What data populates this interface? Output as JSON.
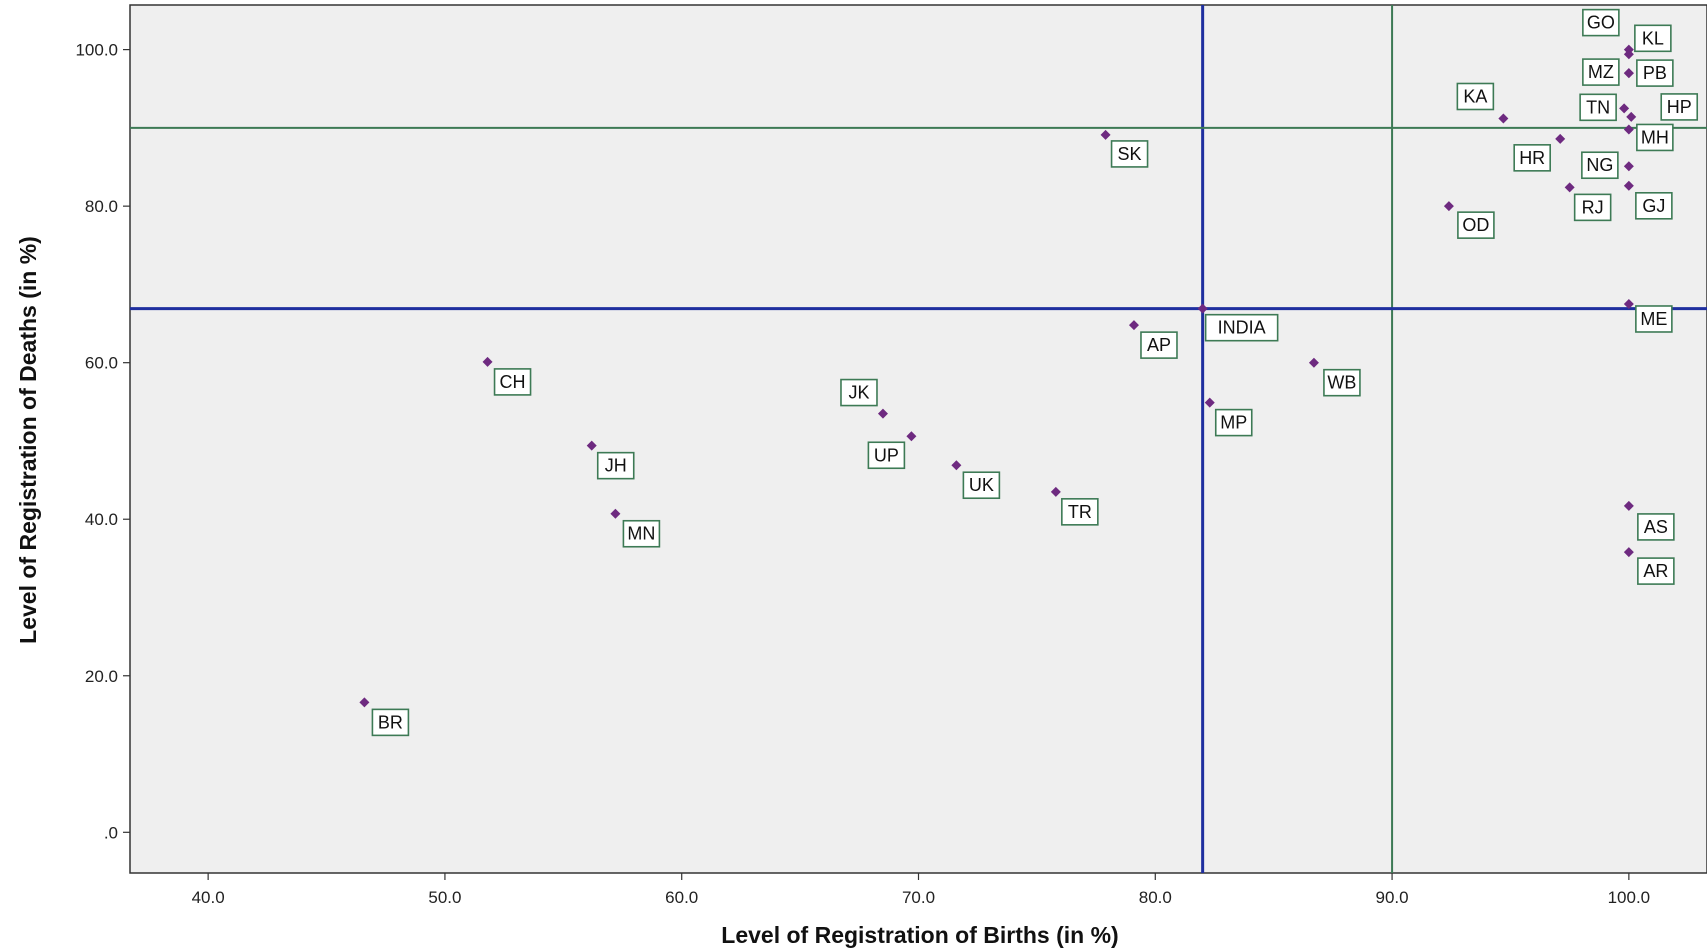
{
  "chart_data": {
    "type": "scatter",
    "xlabel": "Level of Registration of Births (in %)",
    "ylabel": "Level of Registration of Deaths (in %)",
    "xlim": [
      36.7,
      103.3
    ],
    "ylim": [
      -5.2,
      105.7
    ],
    "xticks": [
      40,
      50,
      60,
      70,
      80,
      90,
      100
    ],
    "xtick_labels": [
      "40.0",
      "50.0",
      "60.0",
      "70.0",
      "80.0",
      "90.0",
      "100.0"
    ],
    "yticks": [
      0,
      20,
      40,
      60,
      80,
      100
    ],
    "ytick_labels": [
      ".0",
      "20.0",
      "40.0",
      "60.0",
      "80.0",
      "100.0"
    ],
    "grid": false,
    "reference_lines": {
      "x": [
        {
          "value": 82.0,
          "color": "#1f2f9f"
        },
        {
          "value": 90.0,
          "color": "#3d7a55"
        }
      ],
      "y": [
        {
          "value": 66.9,
          "color": "#1f2f9f"
        },
        {
          "value": 90.0,
          "color": "#3d7a55"
        }
      ]
    },
    "points": [
      {
        "label": "GO",
        "x": 100.0,
        "y": 100.0,
        "ldx": -28,
        "ldy": -27
      },
      {
        "label": "KL",
        "x": 100.0,
        "y": 99.4,
        "ldx": 24,
        "ldy": -16
      },
      {
        "label": "MZ",
        "x": 100.0,
        "y": 97.0,
        "ldx": -28,
        "ldy": -1
      },
      {
        "label": "PB",
        "x": 100.0,
        "y": 97.0,
        "ldx": 26,
        "ldy": 0
      },
      {
        "label": "TN",
        "x": 99.8,
        "y": 92.5,
        "ldx": -26,
        "ldy": -1
      },
      {
        "label": "HP",
        "x": 100.1,
        "y": 91.4,
        "ldx": 48,
        "ldy": -10
      },
      {
        "label": "KA",
        "x": 94.7,
        "y": 91.2,
        "ldx": -28,
        "ldy": -22
      },
      {
        "label": "MH",
        "x": 100.0,
        "y": 89.8,
        "ldx": 26,
        "ldy": 8
      },
      {
        "label": "SK",
        "x": 77.9,
        "y": 89.1,
        "ldx": 24,
        "ldy": 19
      },
      {
        "label": "HR",
        "x": 97.1,
        "y": 88.6,
        "ldx": -28,
        "ldy": 19
      },
      {
        "label": "NG",
        "x": 100.0,
        "y": 85.1,
        "ldx": -29,
        "ldy": -1
      },
      {
        "label": "RJ",
        "x": 97.5,
        "y": 82.4,
        "ldx": 23,
        "ldy": 20
      },
      {
        "label": "GJ",
        "x": 100.0,
        "y": 82.6,
        "ldx": 25,
        "ldy": 20
      },
      {
        "label": "OD",
        "x": 92.4,
        "y": 80.0,
        "ldx": 27,
        "ldy": 19
      },
      {
        "label": "INDIA",
        "x": 82.0,
        "y": 66.9,
        "ldx": 39,
        "ldy": 19
      },
      {
        "label": "ME",
        "x": 100.0,
        "y": 67.5,
        "ldx": 25,
        "ldy": 15
      },
      {
        "label": "AP",
        "x": 79.1,
        "y": 64.8,
        "ldx": 25,
        "ldy": 20
      },
      {
        "label": "CH",
        "x": 51.8,
        "y": 60.1,
        "ldx": 25,
        "ldy": 20
      },
      {
        "label": "WB",
        "x": 86.7,
        "y": 60.0,
        "ldx": 28,
        "ldy": 20
      },
      {
        "label": "MP",
        "x": 82.3,
        "y": 54.9,
        "ldx": 24,
        "ldy": 20
      },
      {
        "label": "JK",
        "x": 68.5,
        "y": 53.5,
        "ldx": -24,
        "ldy": -21
      },
      {
        "label": "UP",
        "x": 69.7,
        "y": 50.6,
        "ldx": -25,
        "ldy": 19
      },
      {
        "label": "JH",
        "x": 56.2,
        "y": 49.4,
        "ldx": 24,
        "ldy": 20
      },
      {
        "label": "UK",
        "x": 71.6,
        "y": 46.9,
        "ldx": 25,
        "ldy": 20
      },
      {
        "label": "TR",
        "x": 75.8,
        "y": 43.5,
        "ldx": 24,
        "ldy": 20
      },
      {
        "label": "AS",
        "x": 100.0,
        "y": 41.7,
        "ldx": 27,
        "ldy": 21
      },
      {
        "label": "MN",
        "x": 57.2,
        "y": 40.7,
        "ldx": 26,
        "ldy": 20
      },
      {
        "label": "AR",
        "x": 100.0,
        "y": 35.8,
        "ldx": 27,
        "ldy": 19
      },
      {
        "label": "BR",
        "x": 46.6,
        "y": 16.6,
        "ldx": 26,
        "ldy": 20
      }
    ]
  },
  "colors": {
    "plot_background": "#efefef",
    "point": "#6e2a80",
    "label_border": "#3d7a55",
    "reference_line_blue": "#1f2f9f",
    "reference_line_green": "#3d7a55"
  }
}
